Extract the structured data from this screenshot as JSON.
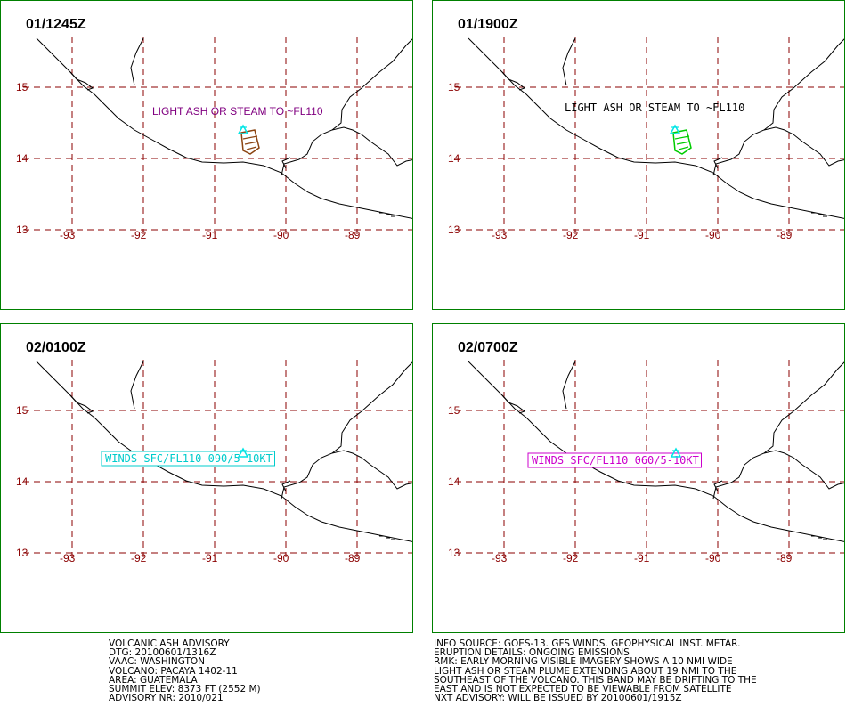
{
  "colors": {
    "panel_border": "#008000",
    "grid": "#8b0000",
    "coastline": "#000000",
    "volcano": "#00e5e5",
    "ash_brown": "#8b4513",
    "ash_green": "#00cc00",
    "label_purple": "#800080",
    "label_cyan": "#00cccc",
    "label_magenta": "#cc00cc"
  },
  "axes": {
    "lat_labels": [
      "15",
      "14",
      "13"
    ],
    "lon_labels": [
      "-93",
      "-92",
      "-91",
      "-90",
      "-89"
    ]
  },
  "panels": [
    {
      "time": "01/1245Z",
      "annotation": "LIGHT ASH OR STEAM TO ~FL110",
      "annotation_color": "#800080",
      "annotation_boxed": false,
      "ash_color": "#8b4513"
    },
    {
      "time": "01/1900Z",
      "annotation": "LIGHT ASH OR STEAM TO ~FL110",
      "annotation_color": "#000000",
      "annotation_boxed": false,
      "ash_color": "#00cc00"
    },
    {
      "time": "02/0100Z",
      "annotation": "WINDS SFC/FL110 090/5-10KT",
      "annotation_color": "#00cccc",
      "annotation_boxed": true,
      "ash_color": null
    },
    {
      "time": "02/0700Z",
      "annotation": "WINDS SFC/FL110 060/5-10KT",
      "annotation_color": "#cc00cc",
      "annotation_boxed": true,
      "ash_color": null
    }
  ],
  "advisory_left": [
    "VOLCANIC ASH ADVISORY",
    "DTG: 20100601/1316Z",
    "VAAC: WASHINGTON",
    "VOLCANO: PACAYA 1402-11",
    "AREA: GUATEMALA",
    "SUMMIT ELEV: 8373 FT (2552 M)",
    "ADVISORY NR: 2010/021"
  ],
  "advisory_right": [
    "INFO SOURCE: GOES-13. GFS WINDS. GEOPHYSICAL INST. METAR.",
    "ERUPTION DETAILS: ONGOING EMISSIONS",
    "RMK: EARLY MORNING VISIBLE IMAGERY SHOWS A 10 NMI WIDE",
    "LIGHT ASH OR STEAM PLUME EXTENDING ABOUT 19 NMI TO THE",
    "SOUTHEAST OF THE VOLCANO. THIS BAND MAY BE DRIFTING TO THE",
    "EAST AND IS NOT EXPECTED TO BE VIEWABLE FROM SATELLITE",
    "NXT ADVISORY: WILL BE ISSUED BY 20100601/1915Z"
  ]
}
